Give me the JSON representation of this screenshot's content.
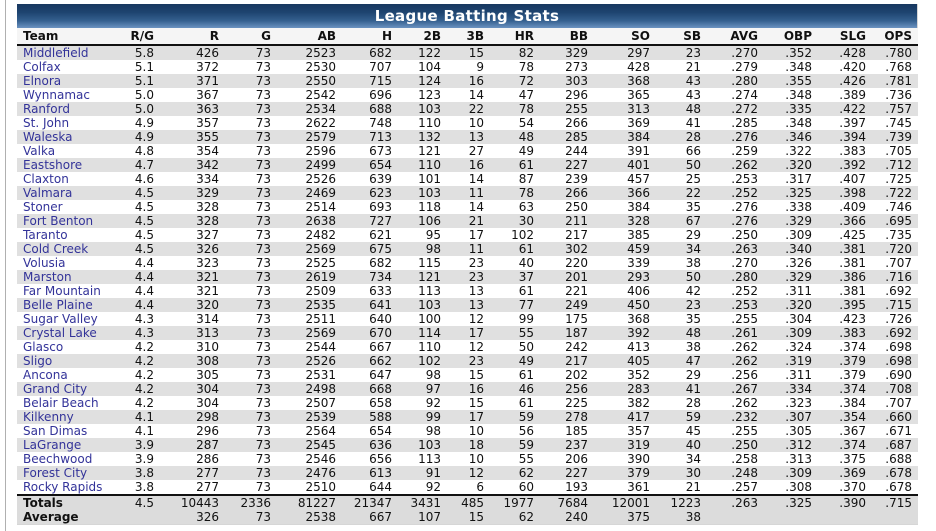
{
  "header": {
    "title": "League Batting Stats"
  },
  "colors": {
    "title_gradient_top": "#17375f",
    "title_gradient_bottom": "#6b93c1",
    "team_link": "#333399",
    "row_alt": "#e0e0e0",
    "footer_bg": "#dcdcdc"
  },
  "table": {
    "columns": [
      "Team",
      "R/G",
      "R",
      "G",
      "AB",
      "H",
      "2B",
      "3B",
      "HR",
      "BB",
      "SO",
      "SB",
      "AVG",
      "OBP",
      "SLG",
      "OPS"
    ],
    "rows": [
      [
        "Middlefield",
        "5.8",
        "426",
        "73",
        "2523",
        "682",
        "122",
        "15",
        "82",
        "329",
        "297",
        "23",
        ".270",
        ".352",
        ".428",
        ".780"
      ],
      [
        "Colfax",
        "5.1",
        "372",
        "73",
        "2530",
        "707",
        "104",
        "9",
        "78",
        "273",
        "428",
        "21",
        ".279",
        ".348",
        ".420",
        ".768"
      ],
      [
        "Elnora",
        "5.1",
        "371",
        "73",
        "2550",
        "715",
        "124",
        "16",
        "72",
        "303",
        "368",
        "43",
        ".280",
        ".355",
        ".426",
        ".781"
      ],
      [
        "Wynnamac",
        "5.0",
        "367",
        "73",
        "2542",
        "696",
        "123",
        "14",
        "47",
        "296",
        "365",
        "43",
        ".274",
        ".348",
        ".389",
        ".736"
      ],
      [
        "Ranford",
        "5.0",
        "363",
        "73",
        "2534",
        "688",
        "103",
        "22",
        "78",
        "255",
        "313",
        "48",
        ".272",
        ".335",
        ".422",
        ".757"
      ],
      [
        "St. John",
        "4.9",
        "357",
        "73",
        "2622",
        "748",
        "110",
        "10",
        "54",
        "266",
        "369",
        "41",
        ".285",
        ".348",
        ".397",
        ".745"
      ],
      [
        "Waleska",
        "4.9",
        "355",
        "73",
        "2579",
        "713",
        "132",
        "13",
        "48",
        "285",
        "384",
        "28",
        ".276",
        ".346",
        ".394",
        ".739"
      ],
      [
        "Valka",
        "4.8",
        "354",
        "73",
        "2596",
        "673",
        "121",
        "27",
        "49",
        "244",
        "391",
        "66",
        ".259",
        ".322",
        ".383",
        ".705"
      ],
      [
        "Eastshore",
        "4.7",
        "342",
        "73",
        "2499",
        "654",
        "110",
        "16",
        "61",
        "227",
        "401",
        "50",
        ".262",
        ".320",
        ".392",
        ".712"
      ],
      [
        "Claxton",
        "4.6",
        "334",
        "73",
        "2526",
        "639",
        "101",
        "14",
        "87",
        "239",
        "457",
        "25",
        ".253",
        ".317",
        ".407",
        ".725"
      ],
      [
        "Valmara",
        "4.5",
        "329",
        "73",
        "2469",
        "623",
        "103",
        "11",
        "78",
        "266",
        "366",
        "22",
        ".252",
        ".325",
        ".398",
        ".722"
      ],
      [
        "Stoner",
        "4.5",
        "328",
        "73",
        "2514",
        "693",
        "118",
        "14",
        "63",
        "250",
        "384",
        "35",
        ".276",
        ".338",
        ".409",
        ".746"
      ],
      [
        "Fort Benton",
        "4.5",
        "328",
        "73",
        "2638",
        "727",
        "106",
        "21",
        "30",
        "211",
        "328",
        "67",
        ".276",
        ".329",
        ".366",
        ".695"
      ],
      [
        "Taranto",
        "4.5",
        "327",
        "73",
        "2482",
        "621",
        "95",
        "17",
        "102",
        "217",
        "385",
        "29",
        ".250",
        ".309",
        ".425",
        ".735"
      ],
      [
        "Cold Creek",
        "4.5",
        "326",
        "73",
        "2569",
        "675",
        "98",
        "11",
        "61",
        "302",
        "459",
        "34",
        ".263",
        ".340",
        ".381",
        ".720"
      ],
      [
        "Volusia",
        "4.4",
        "323",
        "73",
        "2525",
        "682",
        "115",
        "23",
        "40",
        "220",
        "339",
        "38",
        ".270",
        ".326",
        ".381",
        ".707"
      ],
      [
        "Marston",
        "4.4",
        "321",
        "73",
        "2619",
        "734",
        "121",
        "23",
        "37",
        "201",
        "293",
        "50",
        ".280",
        ".329",
        ".386",
        ".716"
      ],
      [
        "Far Mountain",
        "4.4",
        "321",
        "73",
        "2509",
        "633",
        "113",
        "13",
        "61",
        "221",
        "406",
        "42",
        ".252",
        ".311",
        ".381",
        ".692"
      ],
      [
        "Belle Plaine",
        "4.4",
        "320",
        "73",
        "2535",
        "641",
        "103",
        "13",
        "77",
        "249",
        "450",
        "23",
        ".253",
        ".320",
        ".395",
        ".715"
      ],
      [
        "Sugar Valley",
        "4.3",
        "314",
        "73",
        "2511",
        "640",
        "100",
        "12",
        "99",
        "175",
        "368",
        "35",
        ".255",
        ".304",
        ".423",
        ".726"
      ],
      [
        "Crystal Lake",
        "4.3",
        "313",
        "73",
        "2569",
        "670",
        "114",
        "17",
        "55",
        "187",
        "392",
        "48",
        ".261",
        ".309",
        ".383",
        ".692"
      ],
      [
        "Glasco",
        "4.2",
        "310",
        "73",
        "2544",
        "667",
        "110",
        "12",
        "50",
        "242",
        "413",
        "38",
        ".262",
        ".324",
        ".374",
        ".698"
      ],
      [
        "Sligo",
        "4.2",
        "308",
        "73",
        "2526",
        "662",
        "102",
        "23",
        "49",
        "217",
        "405",
        "47",
        ".262",
        ".319",
        ".379",
        ".698"
      ],
      [
        "Ancona",
        "4.2",
        "305",
        "73",
        "2531",
        "647",
        "98",
        "15",
        "61",
        "202",
        "352",
        "29",
        ".256",
        ".311",
        ".379",
        ".690"
      ],
      [
        "Grand City",
        "4.2",
        "304",
        "73",
        "2498",
        "668",
        "97",
        "16",
        "46",
        "256",
        "283",
        "41",
        ".267",
        ".334",
        ".374",
        ".708"
      ],
      [
        "Belair Beach",
        "4.2",
        "304",
        "73",
        "2507",
        "658",
        "92",
        "15",
        "61",
        "225",
        "382",
        "28",
        ".262",
        ".323",
        ".384",
        ".707"
      ],
      [
        "Kilkenny",
        "4.1",
        "298",
        "73",
        "2539",
        "588",
        "99",
        "17",
        "59",
        "278",
        "417",
        "59",
        ".232",
        ".307",
        ".354",
        ".660"
      ],
      [
        "San Dimas",
        "4.1",
        "296",
        "73",
        "2564",
        "654",
        "98",
        "10",
        "56",
        "185",
        "357",
        "45",
        ".255",
        ".305",
        ".367",
        ".671"
      ],
      [
        "LaGrange",
        "3.9",
        "287",
        "73",
        "2545",
        "636",
        "103",
        "18",
        "59",
        "237",
        "319",
        "40",
        ".250",
        ".312",
        ".374",
        ".687"
      ],
      [
        "Beechwood",
        "3.9",
        "286",
        "73",
        "2546",
        "656",
        "113",
        "10",
        "55",
        "206",
        "390",
        "34",
        ".258",
        ".313",
        ".375",
        ".688"
      ],
      [
        "Forest City",
        "3.8",
        "277",
        "73",
        "2476",
        "613",
        "91",
        "12",
        "62",
        "227",
        "379",
        "30",
        ".248",
        ".309",
        ".369",
        ".678"
      ],
      [
        "Rocky Rapids",
        "3.8",
        "277",
        "73",
        "2510",
        "644",
        "92",
        "6",
        "60",
        "193",
        "361",
        "21",
        ".257",
        ".308",
        ".370",
        ".678"
      ]
    ],
    "totals": [
      "Totals",
      "4.5",
      "10443",
      "2336",
      "81227",
      "21347",
      "3431",
      "485",
      "1977",
      "7684",
      "12001",
      "1223",
      ".263",
      ".325",
      ".390",
      ".715"
    ],
    "average": [
      "Average",
      "",
      "326",
      "73",
      "2538",
      "667",
      "107",
      "15",
      "62",
      "240",
      "375",
      "38",
      "",
      "",
      "",
      ""
    ]
  }
}
